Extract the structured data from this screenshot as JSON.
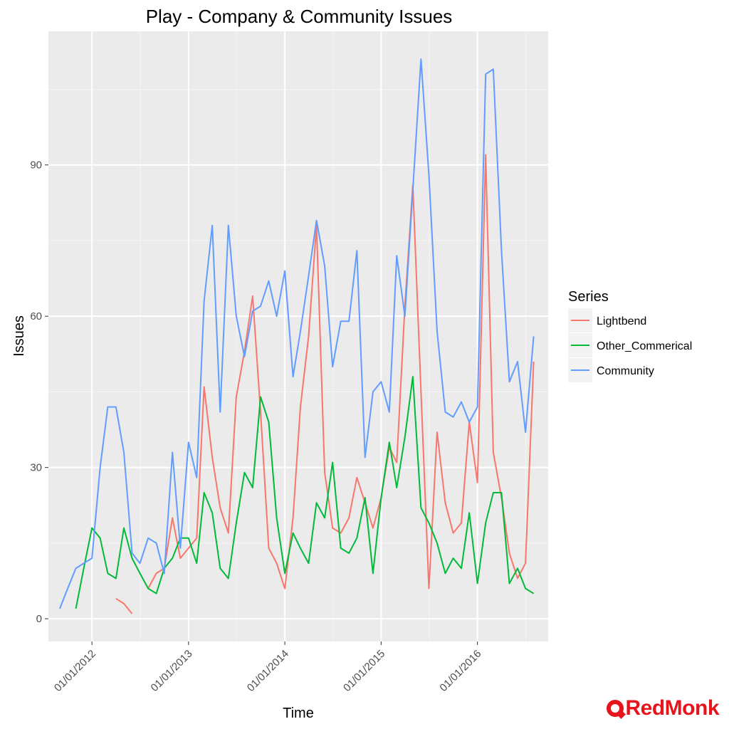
{
  "chart_data": {
    "type": "line",
    "title": "Play - Company & Community Issues",
    "xlabel": "Time",
    "ylabel": "Issues",
    "x_axis_type": "date",
    "xlim": [
      "2011-07-20",
      "2016-09-25"
    ],
    "ylim": [
      -4.5,
      116.5
    ],
    "x_ticks": [
      "2012-01-01",
      "2013-01-01",
      "2014-01-01",
      "2015-01-01",
      "2016-01-01"
    ],
    "x_tick_labels": [
      "01/01/2012",
      "01/01/2013",
      "01/01/2014",
      "01/01/2015",
      "01/01/2016"
    ],
    "y_ticks": [
      0,
      30,
      60,
      90
    ],
    "y_tick_labels": [
      "0",
      "30",
      "60",
      "90"
    ],
    "grid": true,
    "legend": {
      "title": "Series",
      "position": "right"
    },
    "series": [
      {
        "name": "Lightbend",
        "color": "#F8766D",
        "points": [
          [
            "2012-04-01",
            4
          ],
          [
            "2012-05-01",
            3
          ],
          [
            "2012-06-01",
            1
          ],
          [
            "2012-07-01",
            null
          ],
          [
            "2012-08-01",
            6
          ],
          [
            "2012-09-01",
            9
          ],
          [
            "2012-10-01",
            10
          ],
          [
            "2012-11-01",
            20
          ],
          [
            "2012-12-01",
            12
          ],
          [
            "2013-01-01",
            14
          ],
          [
            "2013-02-01",
            16
          ],
          [
            "2013-03-01",
            46
          ],
          [
            "2013-04-01",
            32
          ],
          [
            "2013-05-01",
            22
          ],
          [
            "2013-06-01",
            17
          ],
          [
            "2013-07-01",
            44
          ],
          [
            "2013-08-01",
            53
          ],
          [
            "2013-09-01",
            64
          ],
          [
            "2013-10-01",
            41
          ],
          [
            "2013-11-01",
            14
          ],
          [
            "2013-12-01",
            11
          ],
          [
            "2014-01-01",
            6
          ],
          [
            "2014-02-01",
            20
          ],
          [
            "2014-03-01",
            42
          ],
          [
            "2014-04-01",
            56
          ],
          [
            "2014-05-01",
            78
          ],
          [
            "2014-06-01",
            29
          ],
          [
            "2014-07-01",
            18
          ],
          [
            "2014-08-01",
            17
          ],
          [
            "2014-09-01",
            20
          ],
          [
            "2014-10-01",
            28
          ],
          [
            "2014-11-01",
            23
          ],
          [
            "2014-12-01",
            18
          ],
          [
            "2015-01-01",
            24
          ],
          [
            "2015-02-01",
            34
          ],
          [
            "2015-03-01",
            31
          ],
          [
            "2015-04-01",
            62
          ],
          [
            "2015-05-01",
            86
          ],
          [
            "2015-06-01",
            45
          ],
          [
            "2015-07-01",
            6
          ],
          [
            "2015-08-01",
            37
          ],
          [
            "2015-09-01",
            23
          ],
          [
            "2015-10-01",
            17
          ],
          [
            "2015-11-01",
            19
          ],
          [
            "2015-12-01",
            39
          ],
          [
            "2016-01-01",
            27
          ],
          [
            "2016-02-01",
            92
          ],
          [
            "2016-03-01",
            33
          ],
          [
            "2016-04-01",
            24
          ],
          [
            "2016-05-01",
            13
          ],
          [
            "2016-06-01",
            8
          ],
          [
            "2016-07-01",
            11
          ],
          [
            "2016-08-01",
            51
          ]
        ]
      },
      {
        "name": "Other_Commerical",
        "color": "#00BA38",
        "points": [
          [
            "2011-11-01",
            2
          ],
          [
            "2011-12-01",
            10
          ],
          [
            "2012-01-01",
            18
          ],
          [
            "2012-02-01",
            16
          ],
          [
            "2012-03-01",
            9
          ],
          [
            "2012-04-01",
            8
          ],
          [
            "2012-05-01",
            18
          ],
          [
            "2012-06-01",
            12
          ],
          [
            "2012-07-01",
            9
          ],
          [
            "2012-08-01",
            6
          ],
          [
            "2012-09-01",
            5
          ],
          [
            "2012-10-01",
            10
          ],
          [
            "2012-11-01",
            12
          ],
          [
            "2012-12-01",
            16
          ],
          [
            "2013-01-01",
            16
          ],
          [
            "2013-02-01",
            11
          ],
          [
            "2013-03-01",
            25
          ],
          [
            "2013-04-01",
            21
          ],
          [
            "2013-05-01",
            10
          ],
          [
            "2013-06-01",
            8
          ],
          [
            "2013-07-01",
            19
          ],
          [
            "2013-08-01",
            29
          ],
          [
            "2013-09-01",
            26
          ],
          [
            "2013-10-01",
            44
          ],
          [
            "2013-11-01",
            39
          ],
          [
            "2013-12-01",
            20
          ],
          [
            "2014-01-01",
            9
          ],
          [
            "2014-02-01",
            17
          ],
          [
            "2014-03-01",
            14
          ],
          [
            "2014-04-01",
            11
          ],
          [
            "2014-05-01",
            23
          ],
          [
            "2014-06-01",
            20
          ],
          [
            "2014-07-01",
            31
          ],
          [
            "2014-08-01",
            14
          ],
          [
            "2014-09-01",
            13
          ],
          [
            "2014-10-01",
            16
          ],
          [
            "2014-11-01",
            24
          ],
          [
            "2014-12-01",
            9
          ],
          [
            "2015-01-01",
            24
          ],
          [
            "2015-02-01",
            35
          ],
          [
            "2015-03-01",
            26
          ],
          [
            "2015-04-01",
            36
          ],
          [
            "2015-05-01",
            48
          ],
          [
            "2015-06-01",
            22
          ],
          [
            "2015-07-01",
            19
          ],
          [
            "2015-08-01",
            15
          ],
          [
            "2015-09-01",
            9
          ],
          [
            "2015-10-01",
            12
          ],
          [
            "2015-11-01",
            10
          ],
          [
            "2015-12-01",
            21
          ],
          [
            "2016-01-01",
            7
          ],
          [
            "2016-02-01",
            19
          ],
          [
            "2016-03-01",
            25
          ],
          [
            "2016-04-01",
            25
          ],
          [
            "2016-05-01",
            7
          ],
          [
            "2016-06-01",
            10
          ],
          [
            "2016-07-01",
            6
          ],
          [
            "2016-08-01",
            5
          ]
        ]
      },
      {
        "name": "Community",
        "color": "#619CFF",
        "points": [
          [
            "2011-09-01",
            2
          ],
          [
            "2011-10-01",
            6
          ],
          [
            "2011-11-01",
            10
          ],
          [
            "2011-12-01",
            11
          ],
          [
            "2012-01-01",
            12
          ],
          [
            "2012-02-01",
            30
          ],
          [
            "2012-03-01",
            42
          ],
          [
            "2012-04-01",
            42
          ],
          [
            "2012-05-01",
            33
          ],
          [
            "2012-06-01",
            13
          ],
          [
            "2012-07-01",
            11
          ],
          [
            "2012-08-01",
            16
          ],
          [
            "2012-09-01",
            15
          ],
          [
            "2012-10-01",
            9
          ],
          [
            "2012-11-01",
            33
          ],
          [
            "2012-12-01",
            14
          ],
          [
            "2013-01-01",
            35
          ],
          [
            "2013-02-01",
            28
          ],
          [
            "2013-03-01",
            63
          ],
          [
            "2013-04-01",
            78
          ],
          [
            "2013-05-01",
            41
          ],
          [
            "2013-06-01",
            78
          ],
          [
            "2013-07-01",
            60
          ],
          [
            "2013-08-01",
            52
          ],
          [
            "2013-09-01",
            61
          ],
          [
            "2013-10-01",
            62
          ],
          [
            "2013-11-01",
            67
          ],
          [
            "2013-12-01",
            60
          ],
          [
            "2014-01-01",
            69
          ],
          [
            "2014-02-01",
            48
          ],
          [
            "2014-03-01",
            57
          ],
          [
            "2014-04-01",
            68
          ],
          [
            "2014-05-01",
            79
          ],
          [
            "2014-06-01",
            70
          ],
          [
            "2014-07-01",
            50
          ],
          [
            "2014-08-01",
            59
          ],
          [
            "2014-09-01",
            59
          ],
          [
            "2014-10-01",
            73
          ],
          [
            "2014-11-01",
            32
          ],
          [
            "2014-12-01",
            45
          ],
          [
            "2015-01-01",
            47
          ],
          [
            "2015-02-01",
            41
          ],
          [
            "2015-03-01",
            72
          ],
          [
            "2015-04-01",
            60
          ],
          [
            "2015-05-01",
            85
          ],
          [
            "2015-06-01",
            111
          ],
          [
            "2015-07-01",
            88
          ],
          [
            "2015-08-01",
            57
          ],
          [
            "2015-09-01",
            41
          ],
          [
            "2015-10-01",
            40
          ],
          [
            "2015-11-01",
            43
          ],
          [
            "2015-12-01",
            39
          ],
          [
            "2016-01-01",
            42
          ],
          [
            "2016-02-01",
            108
          ],
          [
            "2016-03-01",
            109
          ],
          [
            "2016-04-01",
            73
          ],
          [
            "2016-05-01",
            47
          ],
          [
            "2016-06-01",
            51
          ],
          [
            "2016-07-01",
            37
          ],
          [
            "2016-08-01",
            56
          ]
        ]
      }
    ]
  },
  "branding": {
    "logo_text": "RedMonk",
    "logo_color": "#e8141c",
    "logo_icon": "redmonk-logo-icon"
  }
}
